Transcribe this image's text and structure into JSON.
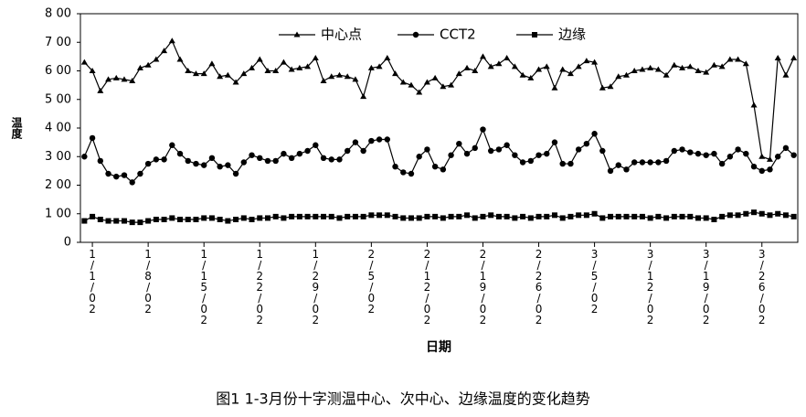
{
  "chart_data": {
    "type": "line",
    "title": "图1 1-3月份十字测温中心、次中心、边缘温度的变化趋势",
    "x_label": "日期",
    "y_label": "温度",
    "categories": [
      null,
      "1/1/02",
      null,
      null,
      null,
      null,
      null,
      null,
      "1/8/02",
      null,
      null,
      null,
      null,
      null,
      null,
      "1/15/02",
      null,
      null,
      null,
      null,
      null,
      null,
      "1/22/02",
      null,
      null,
      null,
      null,
      null,
      null,
      "1/29/02",
      null,
      null,
      null,
      null,
      null,
      null,
      "2/5/02",
      null,
      null,
      null,
      null,
      null,
      null,
      "2/12/02",
      null,
      null,
      null,
      null,
      null,
      null,
      "2/19/02",
      null,
      null,
      null,
      null,
      null,
      null,
      "2/26/02",
      null,
      null,
      null,
      null,
      null,
      null,
      "3/5/02",
      null,
      null,
      null,
      null,
      null,
      null,
      "3/12/02",
      null,
      null,
      null,
      null,
      null,
      null,
      "3/19/02",
      null,
      null,
      null,
      null,
      null,
      null,
      "3/26/02",
      null,
      null,
      null,
      null
    ],
    "series": [
      {
        "name": "中心点",
        "color": "#000000",
        "marker": "triangle",
        "values": [
          630,
          600,
          530,
          570,
          575,
          570,
          565,
          610,
          620,
          640,
          670,
          705,
          640,
          600,
          590,
          590,
          625,
          580,
          585,
          560,
          590,
          610,
          640,
          600,
          600,
          630,
          605,
          610,
          615,
          645,
          565,
          580,
          585,
          580,
          570,
          510,
          610,
          615,
          645,
          590,
          560,
          550,
          525,
          560,
          575,
          545,
          550,
          590,
          610,
          600,
          650,
          615,
          625,
          645,
          615,
          585,
          575,
          605,
          615,
          540,
          605,
          590,
          615,
          635,
          630,
          540,
          545,
          580,
          585,
          600,
          605,
          610,
          605,
          585,
          620,
          610,
          615,
          600,
          595,
          620,
          615,
          640,
          640,
          625,
          480,
          300,
          290,
          645,
          585,
          645
        ]
      },
      {
        "name": "CCT2",
        "color": "#000000",
        "marker": "circle",
        "values": [
          300,
          365,
          285,
          240,
          230,
          235,
          210,
          240,
          275,
          290,
          290,
          340,
          310,
          285,
          275,
          270,
          295,
          265,
          270,
          240,
          280,
          305,
          295,
          285,
          285,
          310,
          295,
          310,
          320,
          340,
          295,
          290,
          290,
          320,
          350,
          320,
          355,
          360,
          360,
          265,
          245,
          240,
          300,
          325,
          265,
          255,
          305,
          345,
          310,
          330,
          395,
          320,
          325,
          340,
          305,
          280,
          285,
          305,
          310,
          350,
          275,
          275,
          325,
          345,
          380,
          320,
          250,
          270,
          255,
          280,
          280,
          280,
          280,
          285,
          320,
          325,
          315,
          310,
          305,
          310,
          275,
          300,
          325,
          310,
          265,
          250,
          255,
          300,
          330,
          305
        ]
      },
      {
        "name": "边缘",
        "color": "#000000",
        "marker": "square",
        "values": [
          75,
          90,
          80,
          75,
          75,
          75,
          70,
          70,
          75,
          80,
          80,
          85,
          80,
          80,
          80,
          85,
          85,
          80,
          75,
          80,
          85,
          80,
          85,
          85,
          90,
          85,
          90,
          90,
          90,
          90,
          90,
          90,
          85,
          90,
          90,
          90,
          95,
          95,
          95,
          90,
          85,
          85,
          85,
          90,
          90,
          85,
          90,
          90,
          95,
          85,
          90,
          95,
          90,
          90,
          85,
          90,
          85,
          90,
          90,
          95,
          85,
          90,
          95,
          95,
          100,
          85,
          90,
          90,
          90,
          90,
          90,
          85,
          90,
          85,
          90,
          90,
          90,
          85,
          85,
          80,
          90,
          95,
          95,
          100,
          105,
          100,
          95,
          100,
          95,
          90
        ]
      }
    ],
    "ylim": [
      0,
      800
    ],
    "yticks": [
      0,
      {
        "value": 100,
        "label": "1 00"
      },
      {
        "value": 200,
        "label": "2 00"
      },
      {
        "value": 300,
        "label": "3 00"
      },
      {
        "value": 400,
        "label": "4 00"
      },
      {
        "value": 500,
        "label": "5 00"
      },
      {
        "value": 600,
        "label": "6 00"
      },
      {
        "value": 700,
        "label": "7 00"
      },
      {
        "value": 800,
        "label": "8 00"
      }
    ],
    "legend": "top"
  }
}
